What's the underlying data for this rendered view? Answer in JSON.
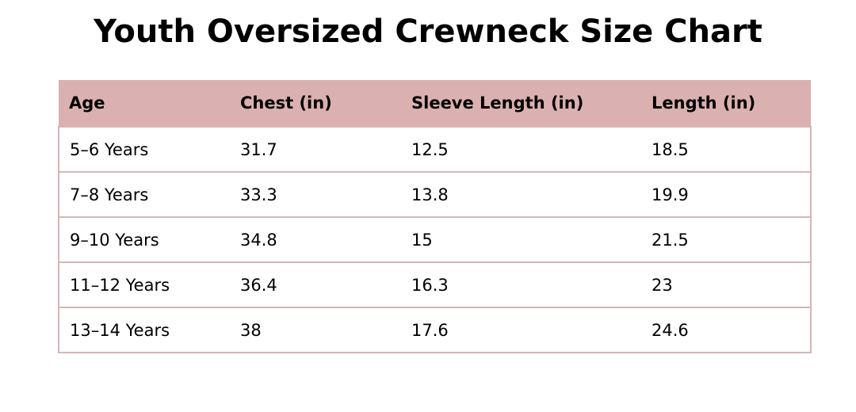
{
  "title": "Youth Oversized Crewneck Size Chart",
  "table": {
    "headers": [
      "Age",
      "Chest (in)",
      "Sleeve Length (in)",
      "Length (in)"
    ],
    "rows": [
      [
        "5–6 Years",
        31.7,
        12.5,
        18.5
      ],
      [
        "7–8 Years",
        33.3,
        13.8,
        19.9
      ],
      [
        "9–10 Years",
        34.8,
        15,
        21.5
      ],
      [
        "11–12 Years",
        36.4,
        16.3,
        23
      ],
      [
        "13–14 Years",
        38,
        17.6,
        24.6
      ]
    ]
  }
}
